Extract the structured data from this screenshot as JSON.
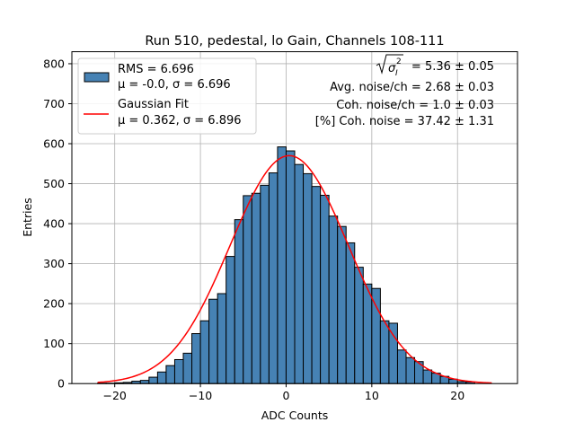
{
  "chart_data": {
    "type": "bar",
    "title": "Run 510, pedestal, lo Gain, Channels 108-111",
    "xlabel": "ADC Counts",
    "ylabel": "Entries",
    "xlim": [
      -25.0,
      27.0
    ],
    "ylim": [
      0,
      830
    ],
    "x_ticks": [
      -20,
      -10,
      0,
      10,
      20
    ],
    "x_tick_labels": [
      "−20",
      "−10",
      "0",
      "10",
      "20"
    ],
    "y_ticks": [
      0,
      100,
      200,
      300,
      400,
      500,
      600,
      700,
      800
    ],
    "y_tick_labels": [
      "0",
      "100",
      "200",
      "300",
      "400",
      "500",
      "600",
      "700",
      "800"
    ],
    "grid": true,
    "bin_width": 1,
    "bins": {
      "left_edges": [
        -23,
        -22,
        -21,
        -20,
        -19,
        -18,
        -17,
        -16,
        -15,
        -14,
        -13,
        -12,
        -11,
        -10,
        -9,
        -8,
        -7,
        -6,
        -5,
        -4,
        -3,
        -2,
        -1,
        0,
        1,
        2,
        3,
        4,
        5,
        6,
        7,
        8,
        9,
        10,
        11,
        12,
        13,
        14,
        15,
        16,
        17,
        18,
        19,
        20,
        21,
        22,
        23
      ],
      "counts": [
        0,
        1,
        1,
        2,
        3,
        6,
        8,
        16,
        29,
        45,
        60,
        76,
        125,
        157,
        211,
        225,
        318,
        410,
        470,
        476,
        496,
        527,
        592,
        582,
        548,
        525,
        493,
        471,
        419,
        393,
        352,
        291,
        249,
        238,
        157,
        151,
        84,
        65,
        55,
        34,
        26,
        18,
        11,
        5,
        4,
        0,
        0
      ]
    },
    "fit": {
      "name": "Gaussian Fit",
      "mu": 0.362,
      "sigma": 6.896,
      "amplitude": 570,
      "range": [
        -22.0,
        24.0
      ]
    },
    "series": [
      {
        "name": "RMS = 6.696",
        "detail": "μ = -0.0, σ = 6.696",
        "type": "histogram",
        "color": "#4682b4"
      },
      {
        "name": "Gaussian Fit",
        "detail": "μ = 0.362, σ = 6.896",
        "type": "line",
        "color": "#ff0000"
      }
    ],
    "legend_position": "top-left",
    "annotations": {
      "sqrt_value": "= 5.36 ± 0.05",
      "lines": [
        "Avg. noise/ch = 2.68 ± 0.03",
        "Coh. noise/ch = 1.0 ± 0.03",
        "[%] Coh. noise = 37.42 ± 1.31"
      ]
    }
  }
}
